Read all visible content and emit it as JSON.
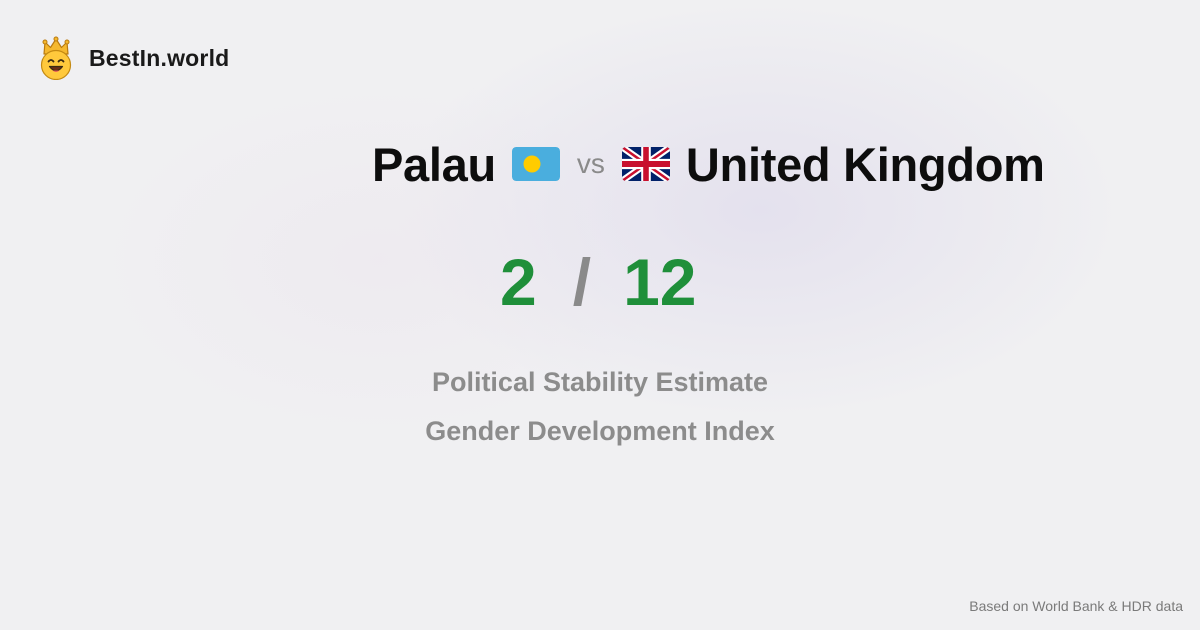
{
  "brand": {
    "name": "BestIn.world",
    "logo_icon": "crowned-smiley-icon"
  },
  "comparison": {
    "left": {
      "country": "Palau",
      "flag_icon": "palau-flag-icon",
      "score": "2"
    },
    "vs_label": "vs",
    "right": {
      "country": "United Kingdom",
      "flag_icon": "uk-flag-icon",
      "score": "12"
    },
    "separator": "/"
  },
  "metrics": [
    "Political Stability Estimate",
    "Gender Development Index"
  ],
  "footer": {
    "source_note": "Based on World Bank & HDR data"
  },
  "colors": {
    "background": "#f0f0f2",
    "score": "#1f8f3a",
    "muted": "#8a8a8a",
    "palau_flag_blue": "#4aaede",
    "palau_flag_gold": "#ffcc00"
  }
}
